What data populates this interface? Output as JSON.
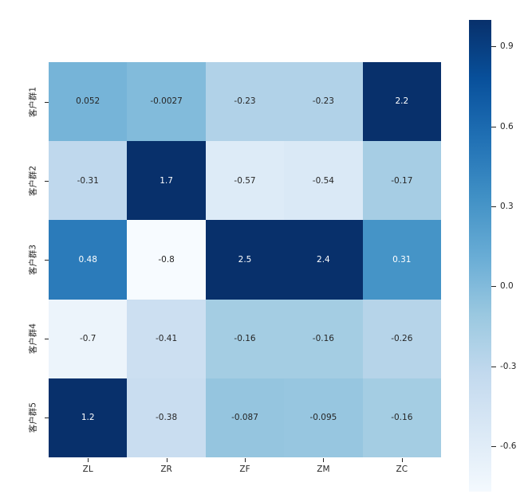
{
  "chart_data": {
    "type": "heatmap",
    "title": "",
    "xlabel": "",
    "ylabel": "",
    "x_labels": [
      "ZL",
      "ZR",
      "ZF",
      "ZM",
      "ZC"
    ],
    "y_labels": [
      "客户群1",
      "客户群2",
      "客户群3",
      "客户群4",
      "客户群5"
    ],
    "values": [
      [
        0.052,
        -0.0027,
        -0.23,
        -0.23,
        2.2
      ],
      [
        -0.31,
        1.7,
        -0.57,
        -0.54,
        -0.17
      ],
      [
        0.48,
        -0.8,
        2.5,
        2.4,
        0.31
      ],
      [
        -0.7,
        -0.41,
        -0.16,
        -0.16,
        -0.26
      ],
      [
        1.2,
        -0.38,
        -0.087,
        -0.095,
        -0.16
      ]
    ],
    "cell_labels": [
      [
        "0.052",
        "-0.0027",
        "-0.23",
        "-0.23",
        "2.2"
      ],
      [
        "-0.31",
        "1.7",
        "-0.57",
        "-0.54",
        "-0.17"
      ],
      [
        "0.48",
        "-0.8",
        "2.5",
        "2.4",
        "0.31"
      ],
      [
        "-0.7",
        "-0.41",
        "-0.16",
        "-0.16",
        "-0.26"
      ],
      [
        "1.2",
        "-0.38",
        "-0.087",
        "-0.095",
        "-0.16"
      ]
    ],
    "colormap": {
      "name": "Blues",
      "anchors": [
        [
          0.0,
          "#f7fbff"
        ],
        [
          0.125,
          "#deebf7"
        ],
        [
          0.25,
          "#c6dbef"
        ],
        [
          0.375,
          "#9ecae1"
        ],
        [
          0.5,
          "#6baed6"
        ],
        [
          0.625,
          "#4292c6"
        ],
        [
          0.75,
          "#2171b5"
        ],
        [
          0.875,
          "#08519c"
        ],
        [
          1.0,
          "#08306b"
        ]
      ]
    },
    "vmin": -0.8,
    "vmax": 1.0,
    "annot_text_dark": "#262626",
    "annot_text_light": "#ffffff",
    "grid": false,
    "legend_position": "colorbar-right",
    "colorbar": {
      "top_value": 1.0,
      "bottom_value": -0.77,
      "ticks": [
        0.9,
        0.6,
        0.3,
        0.0,
        -0.3,
        -0.6
      ],
      "tick_labels": [
        "0.9",
        "0.6",
        "0.3",
        "0.0",
        "-0.3",
        "-0.6"
      ]
    }
  }
}
